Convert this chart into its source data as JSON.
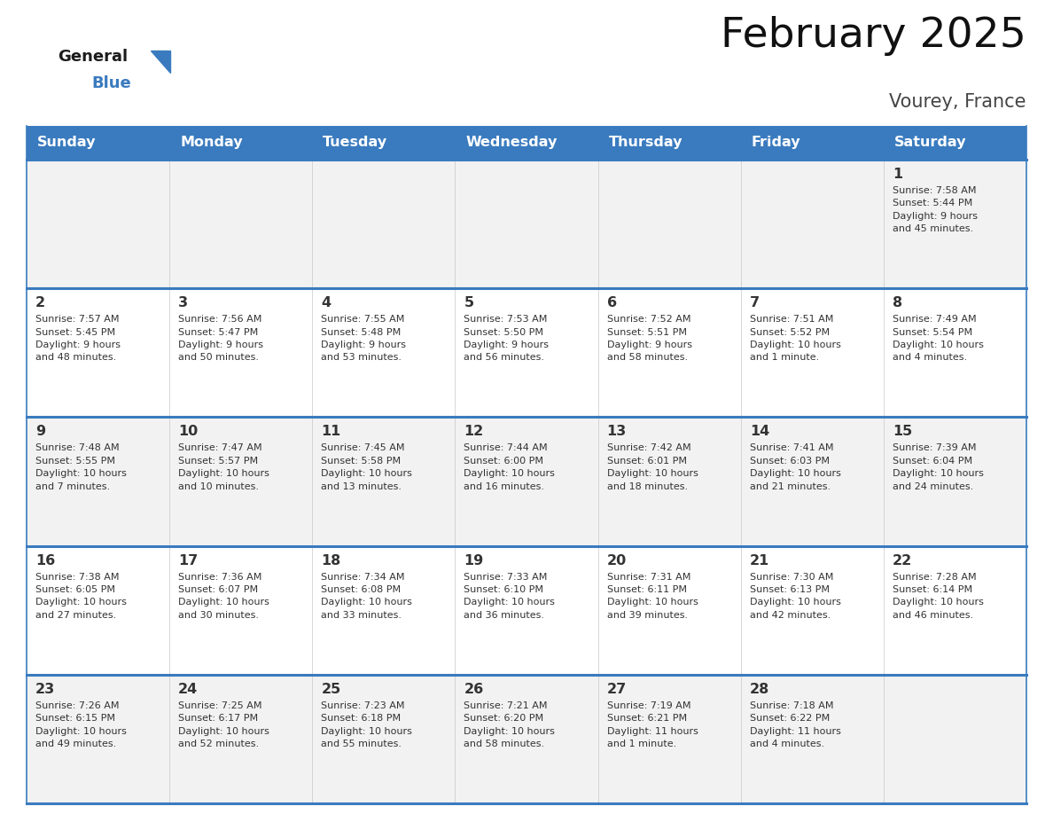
{
  "title": "February 2025",
  "subtitle": "Vourey, France",
  "header_color": "#3a7bbf",
  "header_text_color": "#ffffff",
  "border_color": "#3a7bbf",
  "text_color": "#333333",
  "cell_bg_even": "#f2f2f2",
  "cell_bg_odd": "#ffffff",
  "days_of_week": [
    "Sunday",
    "Monday",
    "Tuesday",
    "Wednesday",
    "Thursday",
    "Friday",
    "Saturday"
  ],
  "weeks": [
    [
      {
        "day": null,
        "info": null
      },
      {
        "day": null,
        "info": null
      },
      {
        "day": null,
        "info": null
      },
      {
        "day": null,
        "info": null
      },
      {
        "day": null,
        "info": null
      },
      {
        "day": null,
        "info": null
      },
      {
        "day": "1",
        "info": "Sunrise: 7:58 AM\nSunset: 5:44 PM\nDaylight: 9 hours\nand 45 minutes."
      }
    ],
    [
      {
        "day": "2",
        "info": "Sunrise: 7:57 AM\nSunset: 5:45 PM\nDaylight: 9 hours\nand 48 minutes."
      },
      {
        "day": "3",
        "info": "Sunrise: 7:56 AM\nSunset: 5:47 PM\nDaylight: 9 hours\nand 50 minutes."
      },
      {
        "day": "4",
        "info": "Sunrise: 7:55 AM\nSunset: 5:48 PM\nDaylight: 9 hours\nand 53 minutes."
      },
      {
        "day": "5",
        "info": "Sunrise: 7:53 AM\nSunset: 5:50 PM\nDaylight: 9 hours\nand 56 minutes."
      },
      {
        "day": "6",
        "info": "Sunrise: 7:52 AM\nSunset: 5:51 PM\nDaylight: 9 hours\nand 58 minutes."
      },
      {
        "day": "7",
        "info": "Sunrise: 7:51 AM\nSunset: 5:52 PM\nDaylight: 10 hours\nand 1 minute."
      },
      {
        "day": "8",
        "info": "Sunrise: 7:49 AM\nSunset: 5:54 PM\nDaylight: 10 hours\nand 4 minutes."
      }
    ],
    [
      {
        "day": "9",
        "info": "Sunrise: 7:48 AM\nSunset: 5:55 PM\nDaylight: 10 hours\nand 7 minutes."
      },
      {
        "day": "10",
        "info": "Sunrise: 7:47 AM\nSunset: 5:57 PM\nDaylight: 10 hours\nand 10 minutes."
      },
      {
        "day": "11",
        "info": "Sunrise: 7:45 AM\nSunset: 5:58 PM\nDaylight: 10 hours\nand 13 minutes."
      },
      {
        "day": "12",
        "info": "Sunrise: 7:44 AM\nSunset: 6:00 PM\nDaylight: 10 hours\nand 16 minutes."
      },
      {
        "day": "13",
        "info": "Sunrise: 7:42 AM\nSunset: 6:01 PM\nDaylight: 10 hours\nand 18 minutes."
      },
      {
        "day": "14",
        "info": "Sunrise: 7:41 AM\nSunset: 6:03 PM\nDaylight: 10 hours\nand 21 minutes."
      },
      {
        "day": "15",
        "info": "Sunrise: 7:39 AM\nSunset: 6:04 PM\nDaylight: 10 hours\nand 24 minutes."
      }
    ],
    [
      {
        "day": "16",
        "info": "Sunrise: 7:38 AM\nSunset: 6:05 PM\nDaylight: 10 hours\nand 27 minutes."
      },
      {
        "day": "17",
        "info": "Sunrise: 7:36 AM\nSunset: 6:07 PM\nDaylight: 10 hours\nand 30 minutes."
      },
      {
        "day": "18",
        "info": "Sunrise: 7:34 AM\nSunset: 6:08 PM\nDaylight: 10 hours\nand 33 minutes."
      },
      {
        "day": "19",
        "info": "Sunrise: 7:33 AM\nSunset: 6:10 PM\nDaylight: 10 hours\nand 36 minutes."
      },
      {
        "day": "20",
        "info": "Sunrise: 7:31 AM\nSunset: 6:11 PM\nDaylight: 10 hours\nand 39 minutes."
      },
      {
        "day": "21",
        "info": "Sunrise: 7:30 AM\nSunset: 6:13 PM\nDaylight: 10 hours\nand 42 minutes."
      },
      {
        "day": "22",
        "info": "Sunrise: 7:28 AM\nSunset: 6:14 PM\nDaylight: 10 hours\nand 46 minutes."
      }
    ],
    [
      {
        "day": "23",
        "info": "Sunrise: 7:26 AM\nSunset: 6:15 PM\nDaylight: 10 hours\nand 49 minutes."
      },
      {
        "day": "24",
        "info": "Sunrise: 7:25 AM\nSunset: 6:17 PM\nDaylight: 10 hours\nand 52 minutes."
      },
      {
        "day": "25",
        "info": "Sunrise: 7:23 AM\nSunset: 6:18 PM\nDaylight: 10 hours\nand 55 minutes."
      },
      {
        "day": "26",
        "info": "Sunrise: 7:21 AM\nSunset: 6:20 PM\nDaylight: 10 hours\nand 58 minutes."
      },
      {
        "day": "27",
        "info": "Sunrise: 7:19 AM\nSunset: 6:21 PM\nDaylight: 11 hours\nand 1 minute."
      },
      {
        "day": "28",
        "info": "Sunrise: 7:18 AM\nSunset: 6:22 PM\nDaylight: 11 hours\nand 4 minutes."
      },
      {
        "day": null,
        "info": null
      }
    ]
  ]
}
